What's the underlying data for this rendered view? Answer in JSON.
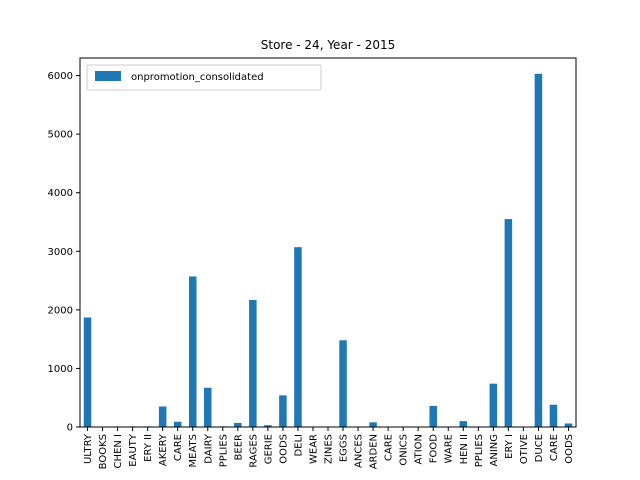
{
  "chart_data": {
    "type": "bar",
    "title": "Store - 24, Year - 2015",
    "xlabel": "",
    "ylabel": "",
    "ylim": [
      0,
      6300
    ],
    "yticks": [
      0,
      1000,
      2000,
      3000,
      4000,
      5000,
      6000
    ],
    "grid": false,
    "legend_position": "top-left",
    "bar_color": "#1f77b4",
    "categories": [
      "ULTRY",
      "BOOKS",
      "CHEN I",
      "EAUTY",
      "ERY II",
      "AKERY",
      "CARE",
      "MEATS",
      "DAIRY",
      "PPLIES",
      "BEER",
      "RAGES",
      "GERIE",
      "OODS",
      "DELI",
      "WEAR",
      "ZINES",
      "EGGS",
      "ANCES",
      "ARDEN",
      "CARE",
      "ONICS",
      "ATION",
      "FOOD",
      "WARE",
      "HEN II",
      "PPLIES",
      "ANING",
      "ERY I",
      "OTIVE",
      "DUCE",
      "CARE",
      "OODS"
    ],
    "series": [
      {
        "name": "onpromotion_consolidated",
        "values": [
          1870,
          0,
          10,
          10,
          10,
          350,
          90,
          2570,
          670,
          10,
          70,
          2170,
          30,
          540,
          3070,
          0,
          0,
          1480,
          0,
          80,
          0,
          0,
          0,
          360,
          0,
          100,
          0,
          740,
          3550,
          0,
          6030,
          380,
          60
        ]
      }
    ]
  }
}
